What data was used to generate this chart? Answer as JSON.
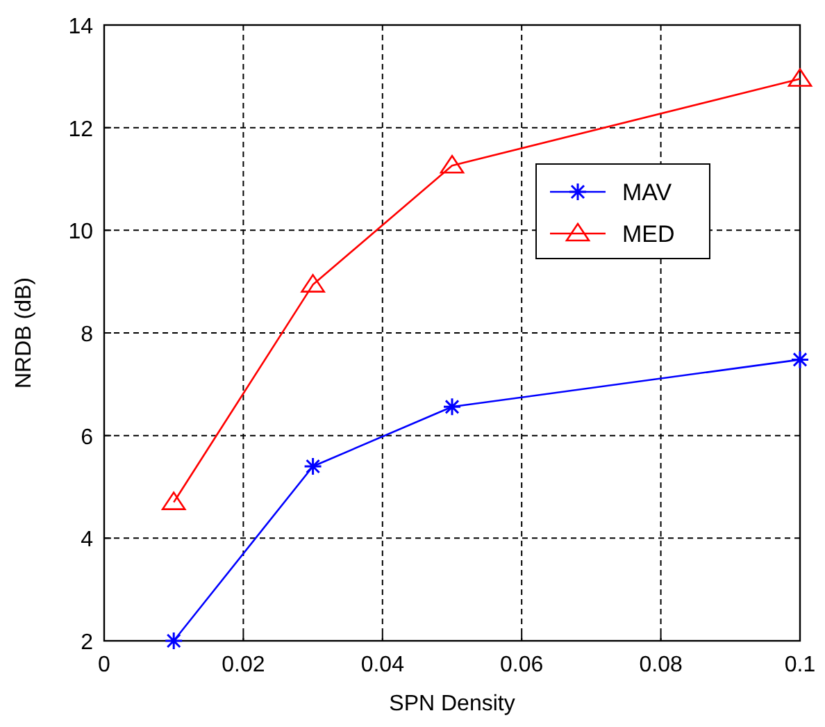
{
  "chart_data": {
    "type": "line",
    "xlabel": "SPN Density",
    "ylabel": "NRDB (dB)",
    "xlim": [
      0,
      0.1
    ],
    "xticks": [
      0,
      0.02,
      0.04,
      0.06,
      0.08,
      0.1
    ],
    "ylim": [
      2,
      14
    ],
    "yticks": [
      2,
      4,
      6,
      8,
      10,
      12,
      14
    ],
    "x": [
      0.01,
      0.03,
      0.05,
      0.1
    ],
    "series": [
      {
        "name": "MAV",
        "color": "#0000ff",
        "marker": "cross",
        "values": [
          2.0,
          5.4,
          6.56,
          7.48
        ]
      },
      {
        "name": "MED",
        "color": "#ff0000",
        "marker": "triangle",
        "values": [
          4.7,
          8.94,
          11.26,
          12.95
        ]
      }
    ],
    "grid": true,
    "legend": "right",
    "line_style": "solid"
  }
}
